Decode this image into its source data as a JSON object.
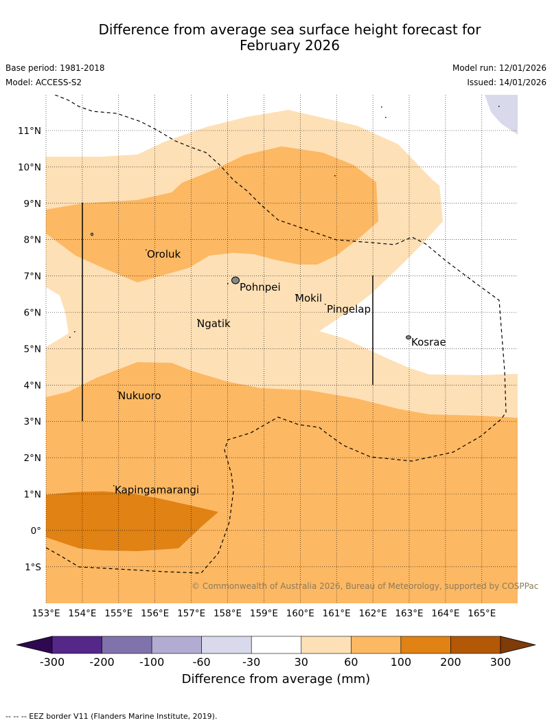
{
  "title_line1": "Difference from average sea surface height forecast for",
  "title_line2": "February 2026",
  "base_period": "Base period: 1981-2018",
  "model": "Model: ACCESS-S2",
  "model_run": "Model run: 12/01/2026",
  "issued": "Issued: 14/01/2026",
  "copyright": "© Commonwealth of Australia 2026, Bureau of Meteorology, supported by COSPPac",
  "lat_labels": [
    "11°N",
    "10°N",
    "9°N",
    "8°N",
    "7°N",
    "6°N",
    "5°N",
    "4°N",
    "3°N",
    "2°N",
    "1°N",
    "0°",
    "1°S"
  ],
  "lon_labels": [
    "153°E",
    "154°E",
    "155°E",
    "156°E",
    "157°E",
    "158°E",
    "159°E",
    "160°E",
    "161°E",
    "162°E",
    "163°E",
    "164°E",
    "165°E"
  ],
  "places": {
    "oroluk": "Oroluk",
    "pohnpei": "Pohnpei",
    "mokil": "Mokil",
    "pingelap": "Pingelap",
    "ngatik": "Ngatik",
    "kosrae": "Kosrae",
    "nukuoro": "Nukuoro",
    "kapingamarangi": "Kapingamarangi"
  },
  "colorbar": {
    "ticks": [
      "-300",
      "-200",
      "-100",
      "-60",
      "-30",
      "30",
      "60",
      "100",
      "200",
      "300"
    ],
    "label": "Difference from average (mm)",
    "colors": [
      "#2e0850",
      "#542788",
      "#8073ac",
      "#b2abd2",
      "#d8daeb",
      "#ffffff",
      "#fee0b6",
      "#fdb863",
      "#e08214",
      "#b35806",
      "#7f3b08"
    ]
  },
  "footnote": "--  --  -- EEZ border V11 (Flanders Marine Institute, 2019)."
}
